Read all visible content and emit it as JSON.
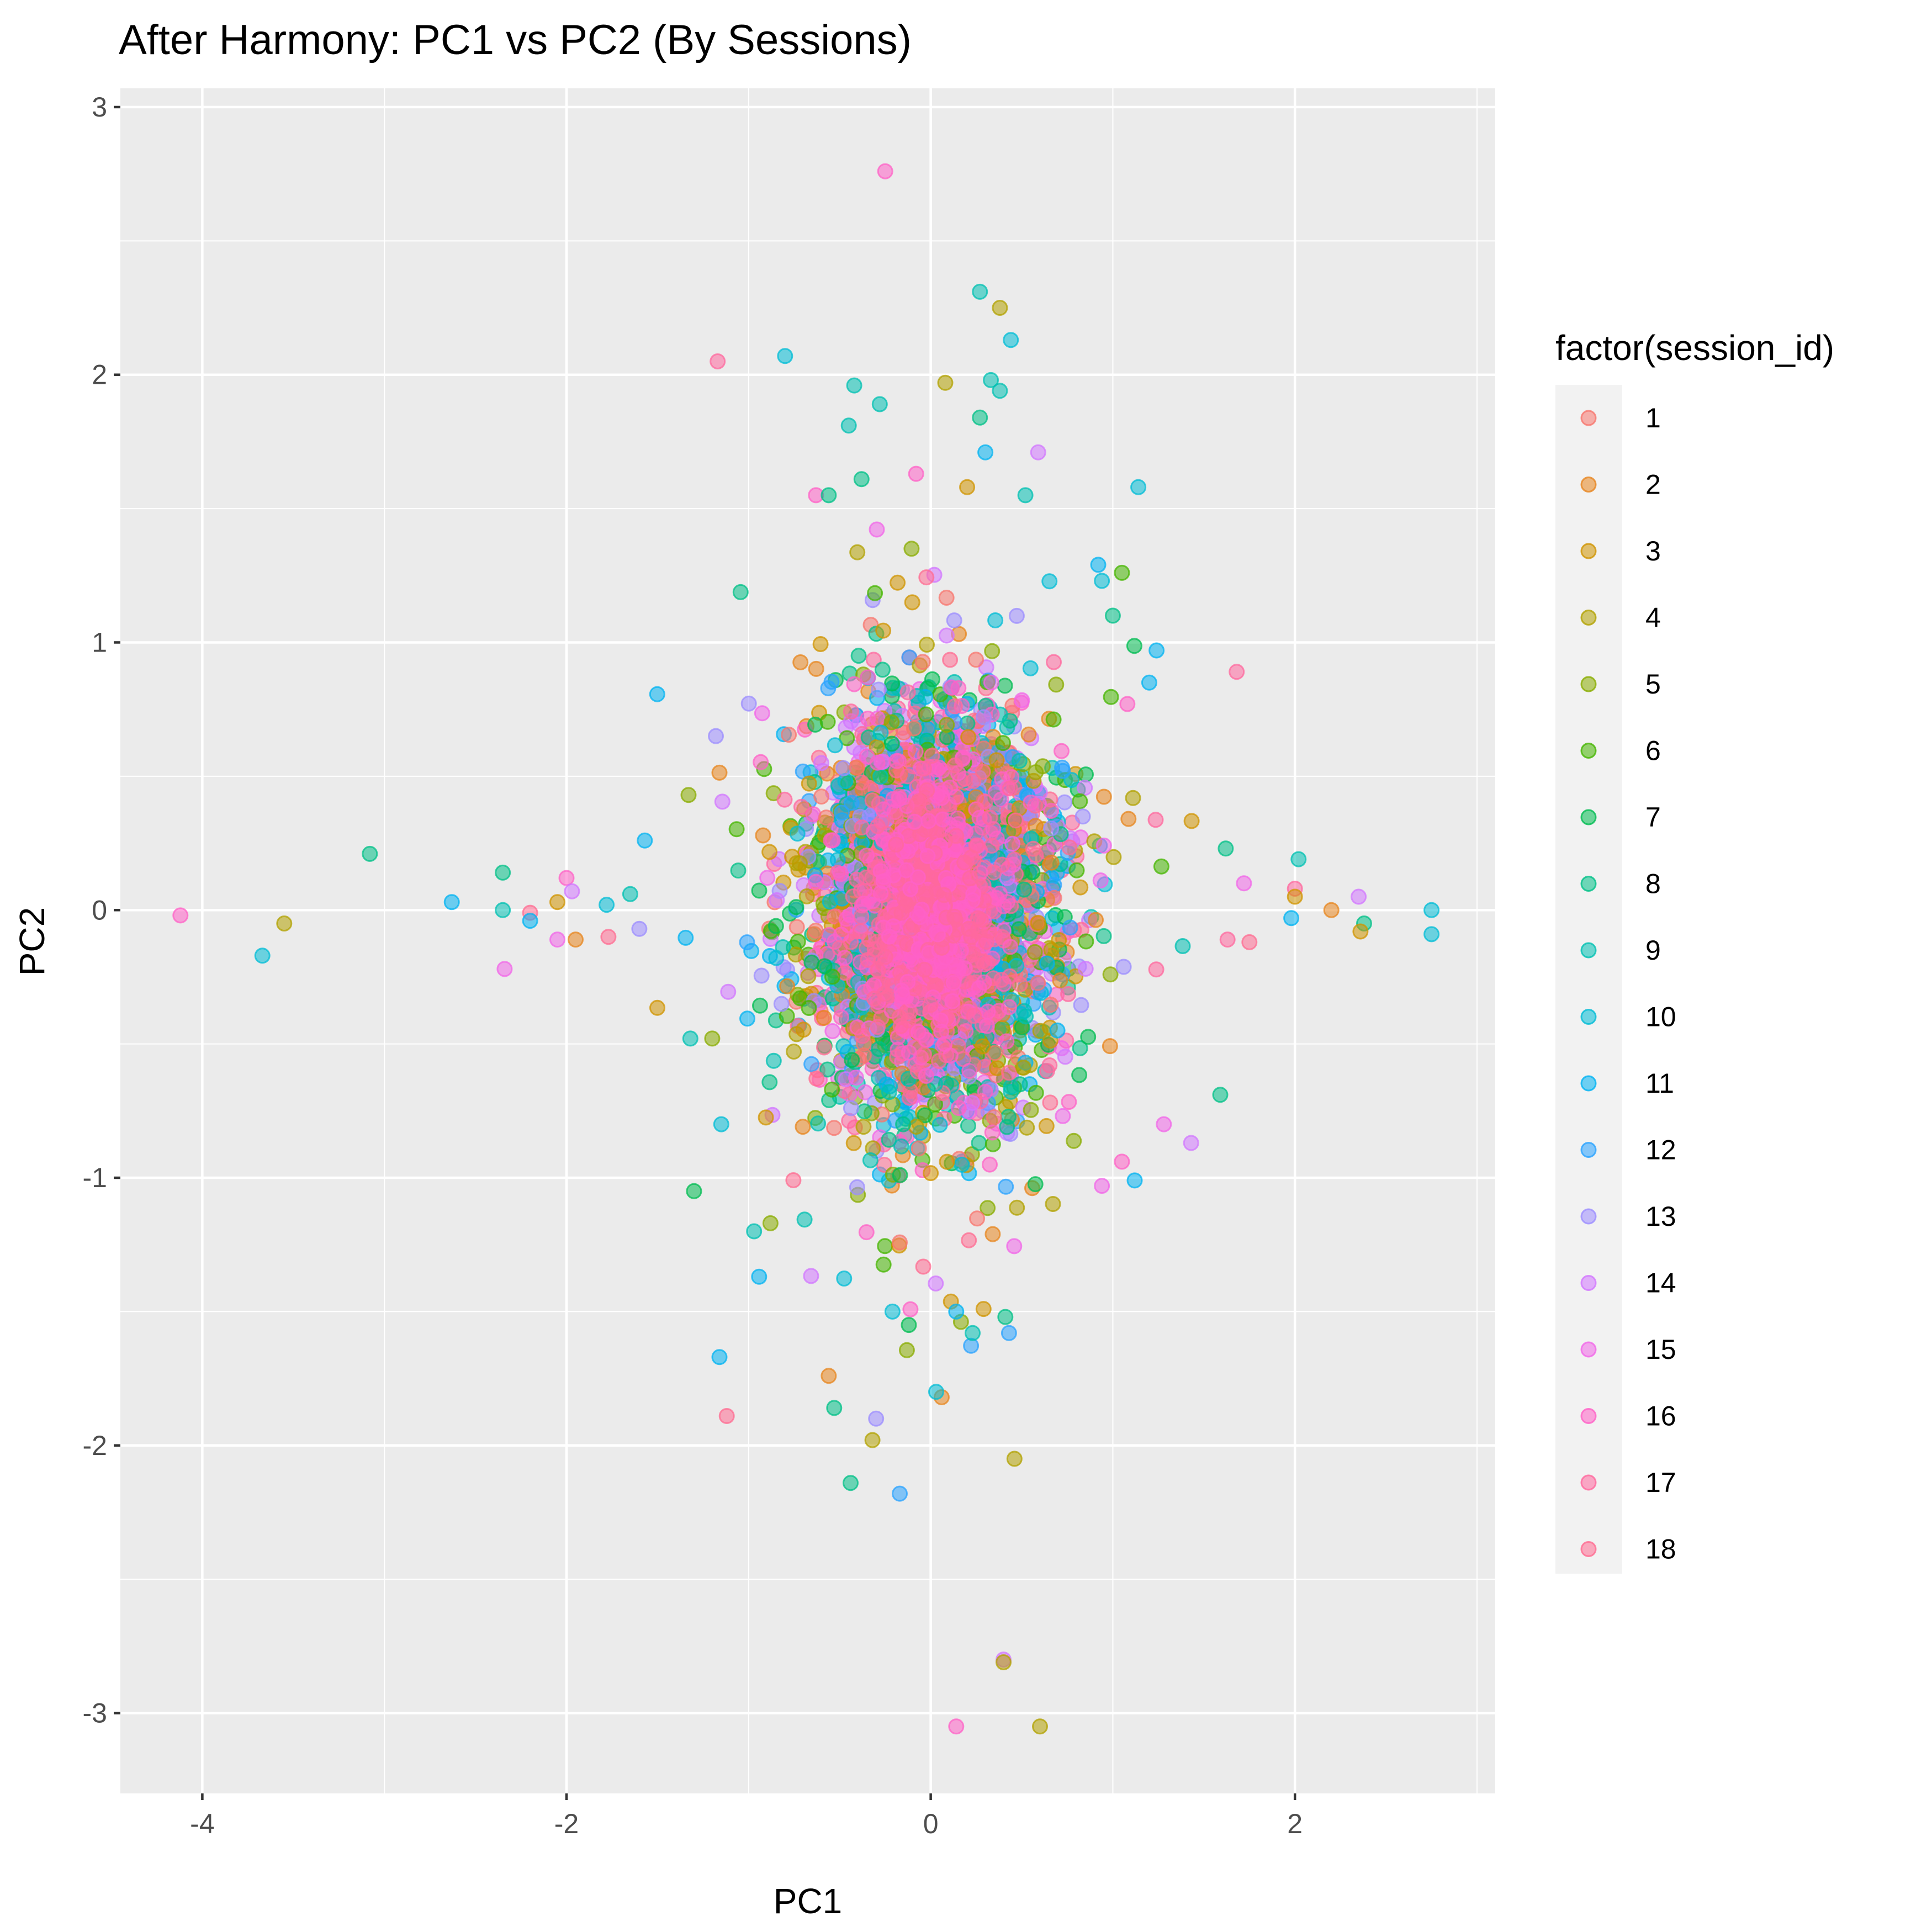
{
  "chart_data": {
    "type": "scatter",
    "title": "After Harmony: PC1 vs PC2 (By Sessions)",
    "xlabel": "PC1",
    "ylabel": "PC2",
    "xlim": [
      -4.45,
      3.1
    ],
    "ylim": [
      -3.3,
      3.07
    ],
    "x_ticks": [
      -4,
      -2,
      0,
      2
    ],
    "y_ticks": [
      -3,
      -2,
      -1,
      0,
      1,
      2,
      3
    ],
    "grid": true,
    "panel_background": "#ebebeb",
    "legend": {
      "title": "factor(session_id)",
      "position": "right",
      "labels": [
        "1",
        "2",
        "3",
        "4",
        "5",
        "6",
        "7",
        "8",
        "9",
        "10",
        "11",
        "12",
        "13",
        "14",
        "15",
        "16",
        "17",
        "18"
      ]
    },
    "series_colors": [
      "#F8766D",
      "#E7851E",
      "#D09400",
      "#B2A100",
      "#89AC00",
      "#45B500",
      "#00BC51",
      "#00C087",
      "#00C0B2",
      "#00BCD6",
      "#00B3F2",
      "#29A3FF",
      "#9C8DFF",
      "#D277FF",
      "#F166E8",
      "#FF61C7",
      "#FF689E",
      "#FF6C91"
    ],
    "outliers": [
      {
        "s": 16,
        "x": -4.12,
        "y": -0.02
      },
      {
        "s": 4,
        "x": -3.55,
        "y": -0.05
      },
      {
        "s": 10,
        "x": -3.67,
        "y": -0.17
      },
      {
        "s": 8,
        "x": -3.08,
        "y": 0.21
      },
      {
        "s": 11,
        "x": -2.63,
        "y": 0.03
      },
      {
        "s": 9,
        "x": -2.35,
        "y": 0.0
      },
      {
        "s": 8,
        "x": -2.35,
        "y": 0.14
      },
      {
        "s": 15,
        "x": -2.34,
        "y": -0.22
      },
      {
        "s": 18,
        "x": -2.2,
        "y": -0.01
      },
      {
        "s": 11,
        "x": -2.2,
        "y": -0.04
      },
      {
        "s": 3,
        "x": -2.05,
        "y": 0.03
      },
      {
        "s": 16,
        "x": -2.0,
        "y": 0.12
      },
      {
        "s": 14,
        "x": -1.97,
        "y": 0.07
      },
      {
        "s": 15,
        "x": -2.05,
        "y": -0.11
      },
      {
        "s": 2,
        "x": -1.95,
        "y": -0.11
      },
      {
        "s": 10,
        "x": -1.78,
        "y": 0.02
      },
      {
        "s": 18,
        "x": -1.77,
        "y": -0.1
      },
      {
        "s": 9,
        "x": -1.65,
        "y": 0.06
      },
      {
        "s": 11,
        "x": -1.57,
        "y": 0.26
      },
      {
        "s": 13,
        "x": -1.6,
        "y": -0.07
      },
      {
        "s": 10,
        "x": 2.75,
        "y": 0.0
      },
      {
        "s": 10,
        "x": 2.75,
        "y": -0.09
      },
      {
        "s": 8,
        "x": 2.38,
        "y": -0.05
      },
      {
        "s": 14,
        "x": 2.35,
        "y": 0.05
      },
      {
        "s": 3,
        "x": 2.36,
        "y": -0.08
      },
      {
        "s": 2,
        "x": 2.2,
        "y": 0.0
      },
      {
        "s": 9,
        "x": 2.02,
        "y": 0.19
      },
      {
        "s": 17,
        "x": 2.0,
        "y": 0.08
      },
      {
        "s": 3,
        "x": 2.0,
        "y": 0.05
      },
      {
        "s": 11,
        "x": 1.98,
        "y": -0.03
      },
      {
        "s": 18,
        "x": 1.75,
        "y": -0.12
      },
      {
        "s": 15,
        "x": 1.72,
        "y": 0.1
      },
      {
        "s": 17,
        "x": 1.63,
        "y": -0.11
      },
      {
        "s": 8,
        "x": 1.62,
        "y": 0.23
      },
      {
        "s": 16,
        "x": -0.25,
        "y": 2.76
      },
      {
        "s": 9,
        "x": 0.27,
        "y": 2.31
      },
      {
        "s": 4,
        "x": 0.38,
        "y": 2.25
      },
      {
        "s": 10,
        "x": 0.44,
        "y": 2.13
      },
      {
        "s": 10,
        "x": -0.8,
        "y": 2.07
      },
      {
        "s": 17,
        "x": -1.17,
        "y": 2.05
      },
      {
        "s": 4,
        "x": 0.08,
        "y": 1.97
      },
      {
        "s": 9,
        "x": 0.33,
        "y": 1.98
      },
      {
        "s": 9,
        "x": 0.38,
        "y": 1.94
      },
      {
        "s": 9,
        "x": -0.42,
        "y": 1.96
      },
      {
        "s": 9,
        "x": -0.28,
        "y": 1.89
      },
      {
        "s": 8,
        "x": 0.27,
        "y": 1.84
      },
      {
        "s": 9,
        "x": -0.45,
        "y": 1.81
      },
      {
        "s": 14,
        "x": 0.59,
        "y": 1.71
      },
      {
        "s": 11,
        "x": 0.3,
        "y": 1.71
      },
      {
        "s": 16,
        "x": -0.08,
        "y": 1.63
      },
      {
        "s": 8,
        "x": -0.38,
        "y": 1.61
      },
      {
        "s": 10,
        "x": 1.14,
        "y": 1.58
      },
      {
        "s": 3,
        "x": 0.2,
        "y": 1.58
      },
      {
        "s": 16,
        "x": -0.63,
        "y": 1.55
      },
      {
        "s": 8,
        "x": -0.56,
        "y": 1.55
      },
      {
        "s": 9,
        "x": 0.52,
        "y": 1.55
      },
      {
        "s": 14,
        "x": 0.4,
        "y": -2.8
      },
      {
        "s": 4,
        "x": 0.4,
        "y": -2.81
      },
      {
        "s": 16,
        "x": 0.14,
        "y": -3.05
      },
      {
        "s": 4,
        "x": 0.6,
        "y": -3.05
      },
      {
        "s": 12,
        "x": -0.17,
        "y": -2.18
      },
      {
        "s": 8,
        "x": -0.44,
        "y": -2.14
      },
      {
        "s": 4,
        "x": 0.46,
        "y": -2.05
      },
      {
        "s": 4,
        "x": -0.32,
        "y": -1.98
      },
      {
        "s": 13,
        "x": -0.3,
        "y": -1.9
      },
      {
        "s": 18,
        "x": -1.12,
        "y": -1.89
      },
      {
        "s": 8,
        "x": -0.53,
        "y": -1.86
      },
      {
        "s": 2,
        "x": 0.06,
        "y": -1.82
      },
      {
        "s": 10,
        "x": 0.03,
        "y": -1.8
      },
      {
        "s": 2,
        "x": -0.56,
        "y": -1.74
      },
      {
        "s": 11,
        "x": -1.16,
        "y": -1.67
      },
      {
        "s": 12,
        "x": 0.43,
        "y": -1.58
      },
      {
        "s": 9,
        "x": 0.23,
        "y": -1.58
      },
      {
        "s": 7,
        "x": -0.12,
        "y": -1.55
      },
      {
        "s": 10,
        "x": -0.21,
        "y": -1.5
      },
      {
        "s": 8,
        "x": 0.41,
        "y": -1.52
      },
      {
        "s": 3,
        "x": 0.29,
        "y": -1.49
      },
      {
        "s": 11,
        "x": 0.14,
        "y": -1.5
      },
      {
        "s": 7,
        "x": -1.3,
        "y": -1.05
      },
      {
        "s": 8,
        "x": 1.59,
        "y": -0.69
      },
      {
        "s": 15,
        "x": 1.28,
        "y": -0.8
      },
      {
        "s": 14,
        "x": 1.43,
        "y": -0.87
      },
      {
        "s": 11,
        "x": 1.12,
        "y": -1.01
      },
      {
        "s": 16,
        "x": 1.05,
        "y": -0.94
      },
      {
        "s": 15,
        "x": 0.94,
        "y": -1.03
      },
      {
        "s": 17,
        "x": 1.68,
        "y": 0.89
      },
      {
        "s": 16,
        "x": 1.08,
        "y": 0.77
      },
      {
        "s": 11,
        "x": 1.24,
        "y": 0.97
      },
      {
        "s": 11,
        "x": 1.2,
        "y": 0.85
      },
      {
        "s": 6,
        "x": 1.05,
        "y": 1.26
      },
      {
        "s": 8,
        "x": 1.0,
        "y": 1.1
      },
      {
        "s": 10,
        "x": 0.94,
        "y": 1.23
      },
      {
        "s": 11,
        "x": 0.92,
        "y": 1.29
      },
      {
        "s": 13,
        "x": -1.18,
        "y": 0.65
      },
      {
        "s": 5,
        "x": -1.33,
        "y": 0.43
      },
      {
        "s": 10,
        "x": -1.15,
        "y": -0.8
      },
      {
        "s": 9,
        "x": -1.32,
        "y": -0.48
      },
      {
        "s": 5,
        "x": -1.2,
        "y": -0.48
      },
      {
        "s": 9,
        "x": -0.97,
        "y": -1.2
      },
      {
        "s": 5,
        "x": -0.88,
        "y": -1.17
      }
    ]
  }
}
